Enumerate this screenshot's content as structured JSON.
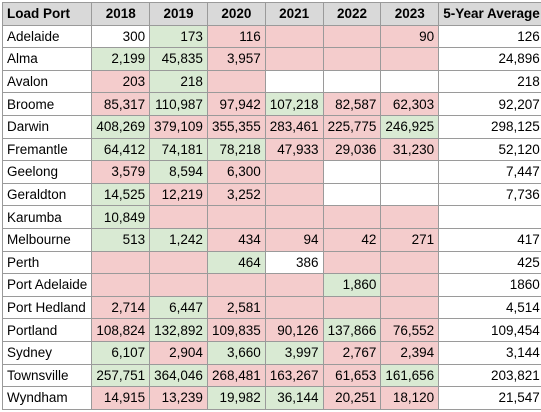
{
  "headers": [
    "Load Port",
    "2018",
    "2019",
    "2020",
    "2021",
    "2022",
    "2023",
    "5-Year Average"
  ],
  "colors": {
    "header_bg": "#d9d9d9",
    "increase_green": "#d9ead3",
    "decrease_red": "#f4cccc",
    "grid": "#9a9a9a"
  },
  "rows": [
    {
      "port": "Adelaide",
      "values": [
        "300",
        "173",
        "116",
        "",
        "",
        "90"
      ],
      "fills": [
        "w",
        "g",
        "r",
        "r",
        "r",
        "r"
      ],
      "avg": "126"
    },
    {
      "port": "Alma",
      "values": [
        "2,199",
        "45,835",
        "3,957",
        "",
        "",
        ""
      ],
      "fills": [
        "g",
        "g",
        "r",
        "r",
        "r",
        "r"
      ],
      "avg": "24,896"
    },
    {
      "port": "Avalon",
      "values": [
        "203",
        "218",
        "",
        "",
        "",
        ""
      ],
      "fills": [
        "r",
        "g",
        "r",
        "w",
        "w",
        "w"
      ],
      "avg": "218"
    },
    {
      "port": "Broome",
      "values": [
        "85,317",
        "110,987",
        "97,942",
        "107,218",
        "82,587",
        "62,303"
      ],
      "fills": [
        "r",
        "g",
        "r",
        "g",
        "r",
        "r"
      ],
      "avg": "92,207"
    },
    {
      "port": "Darwin",
      "values": [
        "408,269",
        "379,109",
        "355,355",
        "283,461",
        "225,775",
        "246,925"
      ],
      "fills": [
        "g",
        "r",
        "r",
        "r",
        "r",
        "g"
      ],
      "avg": "298,125"
    },
    {
      "port": "Fremantle",
      "values": [
        "64,412",
        "74,181",
        "78,218",
        "47,933",
        "29,036",
        "31,230"
      ],
      "fills": [
        "g",
        "g",
        "g",
        "r",
        "r",
        "r"
      ],
      "avg": "52,120"
    },
    {
      "port": "Geelong",
      "values": [
        "3,579",
        "8,594",
        "6,300",
        "",
        "",
        ""
      ],
      "fills": [
        "r",
        "g",
        "r",
        "r",
        "w",
        "w"
      ],
      "avg": "7,447"
    },
    {
      "port": "Geraldton",
      "values": [
        "14,525",
        "12,219",
        "3,252",
        "",
        "",
        ""
      ],
      "fills": [
        "g",
        "r",
        "r",
        "r",
        "w",
        "w"
      ],
      "avg": "7,736"
    },
    {
      "port": "Karumba",
      "values": [
        "10,849",
        "",
        "",
        "",
        "",
        ""
      ],
      "fills": [
        "g",
        "r",
        "r",
        "r",
        "r",
        "r"
      ],
      "avg": ""
    },
    {
      "port": "Melbourne",
      "values": [
        "513",
        "1,242",
        "434",
        "94",
        "42",
        "271"
      ],
      "fills": [
        "g",
        "g",
        "r",
        "r",
        "r",
        "r"
      ],
      "avg": "417"
    },
    {
      "port": "Perth",
      "values": [
        "",
        "",
        "464",
        "386",
        "",
        ""
      ],
      "fills": [
        "r",
        "r",
        "g",
        "w",
        "r",
        "r"
      ],
      "avg": "425"
    },
    {
      "port": "Port Adelaide",
      "values": [
        "",
        "",
        "",
        "",
        "1,860",
        ""
      ],
      "fills": [
        "r",
        "r",
        "r",
        "r",
        "g",
        "r"
      ],
      "avg": "1860"
    },
    {
      "port": "Port Hedland",
      "values": [
        "2,714",
        "6,447",
        "2,581",
        "",
        "",
        ""
      ],
      "fills": [
        "r",
        "g",
        "r",
        "r",
        "r",
        "r"
      ],
      "avg": "4,514"
    },
    {
      "port": "Portland",
      "values": [
        "108,824",
        "132,892",
        "109,835",
        "90,126",
        "137,866",
        "76,552"
      ],
      "fills": [
        "r",
        "g",
        "r",
        "r",
        "g",
        "r"
      ],
      "avg": "109,454"
    },
    {
      "port": "Sydney",
      "values": [
        "6,107",
        "2,904",
        "3,660",
        "3,997",
        "2,767",
        "2,394"
      ],
      "fills": [
        "g",
        "r",
        "g",
        "g",
        "r",
        "r"
      ],
      "avg": "3,144"
    },
    {
      "port": "Townsville",
      "values": [
        "257,751",
        "364,046",
        "268,481",
        "163,267",
        "61,653",
        "161,656"
      ],
      "fills": [
        "g",
        "g",
        "r",
        "r",
        "r",
        "g"
      ],
      "avg": "203,821"
    },
    {
      "port": "Wyndham",
      "values": [
        "14,915",
        "13,239",
        "19,982",
        "36,144",
        "20,251",
        "18,120"
      ],
      "fills": [
        "r",
        "r",
        "g",
        "g",
        "r",
        "r"
      ],
      "avg": "21,547"
    }
  ]
}
